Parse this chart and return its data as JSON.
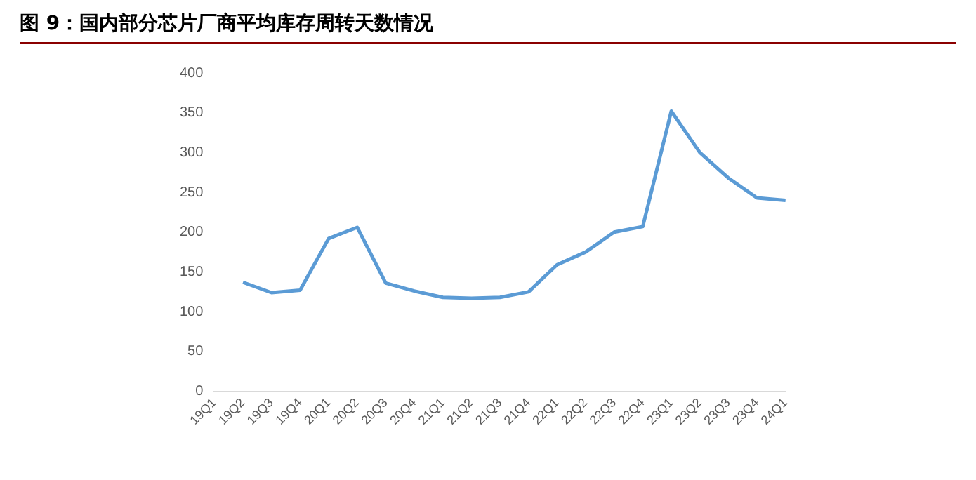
{
  "chart_data": {
    "type": "line",
    "title": "图 9：国内部分芯片厂商平均库存周转天数情况",
    "categories": [
      "19Q1",
      "19Q2",
      "19Q3",
      "19Q4",
      "20Q1",
      "20Q2",
      "20Q3",
      "20Q4",
      "21Q1",
      "21Q2",
      "21Q3",
      "21Q4",
      "22Q1",
      "22Q2",
      "22Q3",
      "22Q4",
      "23Q1",
      "23Q2",
      "23Q3",
      "23Q4",
      "24Q1"
    ],
    "series": [
      {
        "color": "#5b9bd5",
        "values": [
          null,
          137,
          124,
          127,
          192,
          206,
          136,
          126,
          118,
          117,
          118,
          125,
          159,
          175,
          200,
          207,
          352,
          300,
          268,
          243,
          240
        ]
      }
    ],
    "ylim": [
      0,
      400
    ],
    "yticks": [
      0,
      50,
      100,
      150,
      200,
      250,
      300,
      350,
      400
    ],
    "grid": false,
    "legend": false,
    "marker": "none",
    "line_style": "solid"
  }
}
